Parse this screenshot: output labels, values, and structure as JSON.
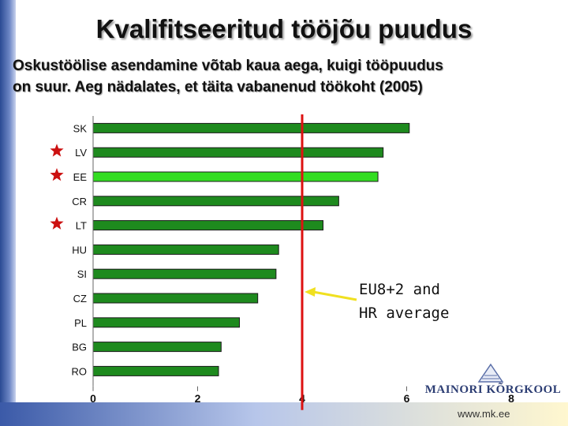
{
  "slide": {
    "title": "Kvalifitseeritud tööjõu puudus",
    "subtitle_line1": "Oskustöölise asendamine võtab kaua aega, kuigi tööpuudus",
    "subtitle_line2": "on suur. Aeg nädalates, et täita vabanenud töökoht (2005)",
    "annotation_line1": "EU8+2 and",
    "annotation_line2": "HR average",
    "logo_text": "MAINORI KÕRGKOOL",
    "footer_url": "www.mk.ee",
    "colors": {
      "bar": "#1e8a1e",
      "highlight_bar": "#33dd22",
      "average_line": "#dd1111",
      "star": "#cc1111",
      "arrow": "#f0e020"
    }
  },
  "chart_data": {
    "type": "bar",
    "orientation": "horizontal",
    "categories": [
      "SK",
      "LV",
      "EE",
      "CR",
      "LT",
      "HU",
      "SI",
      "CZ",
      "PL",
      "BG",
      "RO"
    ],
    "values": [
      6.05,
      5.55,
      5.45,
      4.7,
      4.4,
      3.55,
      3.5,
      3.15,
      2.8,
      2.45,
      2.4
    ],
    "highlighted": [
      "EE"
    ],
    "starred": [
      "LV",
      "EE",
      "LT"
    ],
    "xlim": [
      0,
      8
    ],
    "xticks": [
      0,
      2,
      4,
      6,
      8
    ],
    "reference_line": 4.0,
    "grid": false
  }
}
